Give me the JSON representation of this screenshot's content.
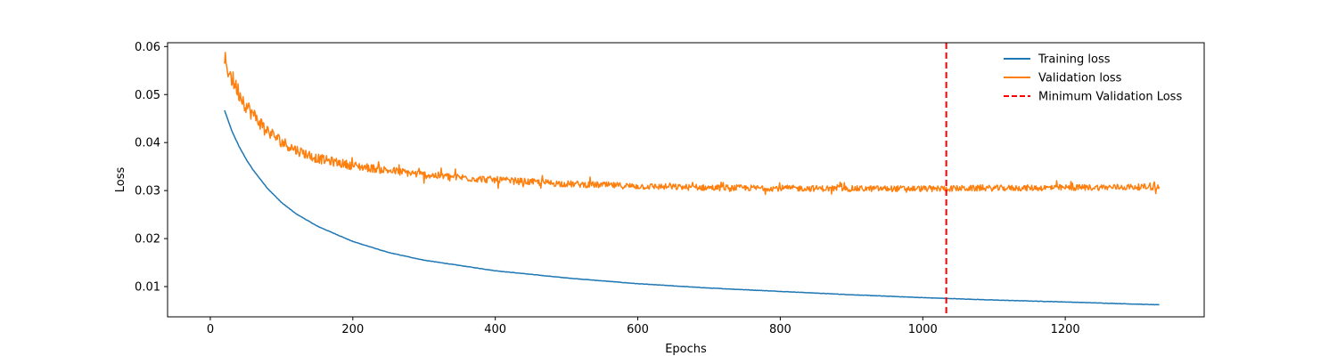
{
  "chart_data": {
    "type": "line",
    "title": "",
    "xlabel": "Epochs",
    "ylabel": "Loss",
    "xlim": [
      -60,
      1395
    ],
    "ylim": [
      0.0037,
      0.0608
    ],
    "x_ticks": [
      0,
      200,
      400,
      600,
      800,
      1000,
      1200
    ],
    "x_tick_labels": [
      "0",
      "200",
      "400",
      "600",
      "800",
      "1000",
      "1200"
    ],
    "y_ticks": [
      0.01,
      0.02,
      0.03,
      0.04,
      0.05,
      0.06
    ],
    "y_tick_labels": [
      "0.01",
      "0.02",
      "0.03",
      "0.04",
      "0.05",
      "0.06"
    ],
    "grid": false,
    "legend_position": "top-right",
    "series": [
      {
        "name": "Training loss",
        "color": "#1f77b4",
        "x": [
          20,
          30,
          40,
          50,
          60,
          80,
          100,
          120,
          150,
          200,
          250,
          300,
          400,
          500,
          600,
          700,
          800,
          900,
          1000,
          1100,
          1200,
          1332
        ],
        "values": [
          0.0467,
          0.0425,
          0.0393,
          0.0366,
          0.0343,
          0.0305,
          0.0275,
          0.0252,
          0.0226,
          0.0194,
          0.0171,
          0.0155,
          0.0133,
          0.0118,
          0.0106,
          0.0097,
          0.009,
          0.0083,
          0.0077,
          0.0072,
          0.0068,
          0.0062
        ]
      },
      {
        "name": "Validation loss",
        "color": "#ff7f0e",
        "x": [
          20,
          30,
          40,
          50,
          60,
          80,
          100,
          120,
          150,
          200,
          250,
          300,
          400,
          500,
          600,
          700,
          800,
          900,
          1000,
          1100,
          1200,
          1332
        ],
        "values": [
          0.0572,
          0.0535,
          0.0505,
          0.0478,
          0.0458,
          0.0425,
          0.0402,
          0.0385,
          0.0367,
          0.0352,
          0.0342,
          0.0333,
          0.0322,
          0.0314,
          0.0309,
          0.0306,
          0.0305,
          0.0304,
          0.0304,
          0.0305,
          0.0306,
          0.0308
        ]
      }
    ],
    "vlines": [
      {
        "name": "Minimum Validation Loss",
        "x": 1033,
        "color": "#ff0000",
        "style": "dashed"
      }
    ]
  }
}
